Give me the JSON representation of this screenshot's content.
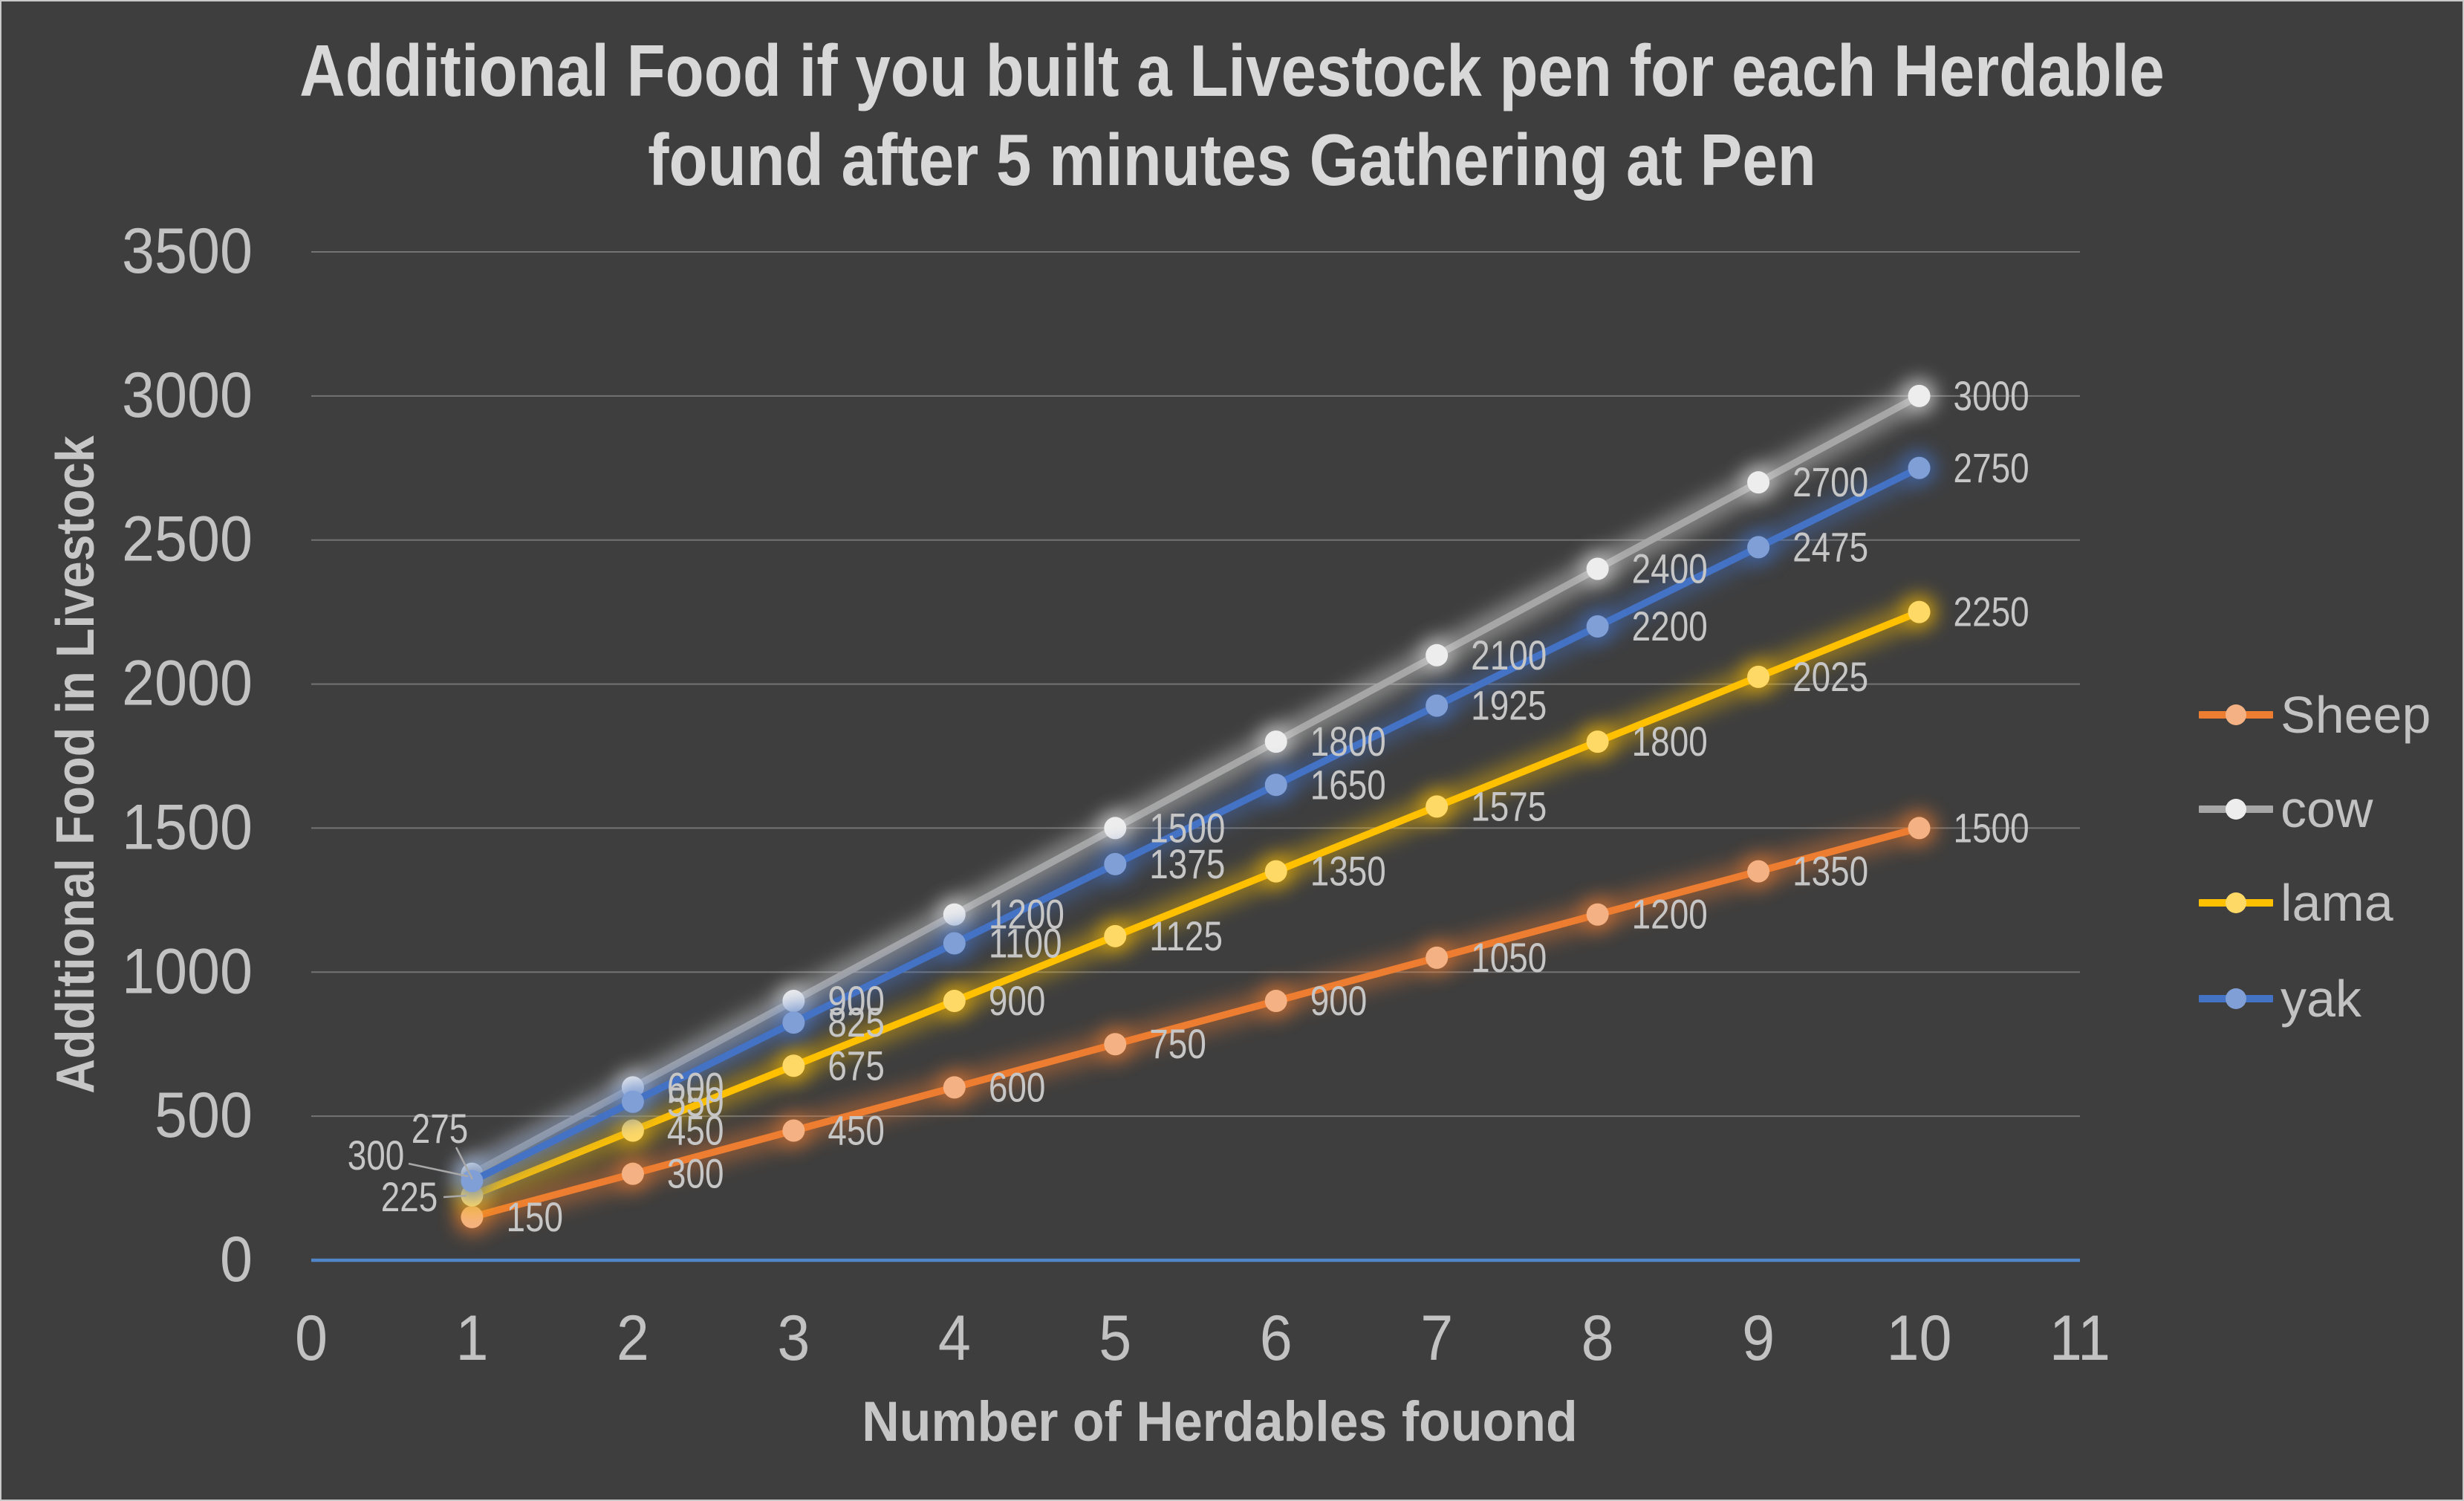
{
  "title": {
    "lines": [
      "Additional Food if you built a Livestock pen for each Herdable",
      "found after 5 minutes Gathering at Pen"
    ]
  },
  "chart_data": {
    "type": "line",
    "x": [
      1,
      2,
      3,
      4,
      5,
      6,
      7,
      8,
      9,
      10
    ],
    "series": [
      {
        "name": "Sheep",
        "color": "#ED7D31",
        "marker_color": "#F4B183",
        "glow_color": "#ED7D31",
        "values": [
          150,
          300,
          450,
          600,
          750,
          900,
          1050,
          1200,
          1350,
          1500
        ]
      },
      {
        "name": "cow",
        "color": "#A6A6A6",
        "marker_color": "#EDEDED",
        "glow_color": "#E8E8E8",
        "values": [
          300,
          600,
          900,
          1200,
          1500,
          1800,
          2100,
          2400,
          2700,
          3000
        ]
      },
      {
        "name": "lama",
        "color": "#FFC000",
        "marker_color": "#FFD966",
        "glow_color": "#FFC000",
        "values": [
          225,
          450,
          675,
          900,
          1125,
          1350,
          1575,
          1800,
          2025,
          2250
        ]
      },
      {
        "name": "yak",
        "color": "#4472C4",
        "marker_color": "#7F9FD6",
        "glow_color": "#4472C4",
        "values": [
          275,
          550,
          825,
          1100,
          1375,
          1650,
          1925,
          2200,
          2475,
          2750
        ]
      }
    ],
    "title": "Additional Food if you built a Livestock pen for each Herdable found after 5 minutes Gathering at Pen",
    "xlabel": "Number of Herdables fouond",
    "ylabel": "Additional Food in Livestock",
    "xlim": [
      0,
      11
    ],
    "ylim": [
      0,
      3500
    ],
    "x_ticks": [
      0,
      1,
      2,
      3,
      4,
      5,
      6,
      7,
      8,
      9,
      10,
      11
    ],
    "y_ticks": [
      0,
      500,
      1000,
      1500,
      2000,
      2500,
      3000,
      3500
    ],
    "grid": "horizontal",
    "data_labels": true,
    "legend_position": "right",
    "background": "#3E3E3E",
    "gridline_color": "#8A8A8A",
    "axis_line_color": "#4E86C8",
    "text_color": "#C2C2C2",
    "data_label_color": "#C6C6C6",
    "title_color": "#D8D8D8",
    "leader_line_color": "#A8A8A8",
    "label_overrides": {
      "cow.0": {
        "x": 504,
        "y": 1553,
        "leader": [
          548,
          1564,
          628,
          1581
        ]
      },
      "yak.0": {
        "x": 590,
        "y": 1517,
        "leader": [
          612,
          1542,
          634,
          1585
        ]
      },
      "lama.0": {
        "x": 549,
        "y": 1609,
        "leader": [
          595,
          1609,
          626,
          1607
        ]
      }
    }
  }
}
